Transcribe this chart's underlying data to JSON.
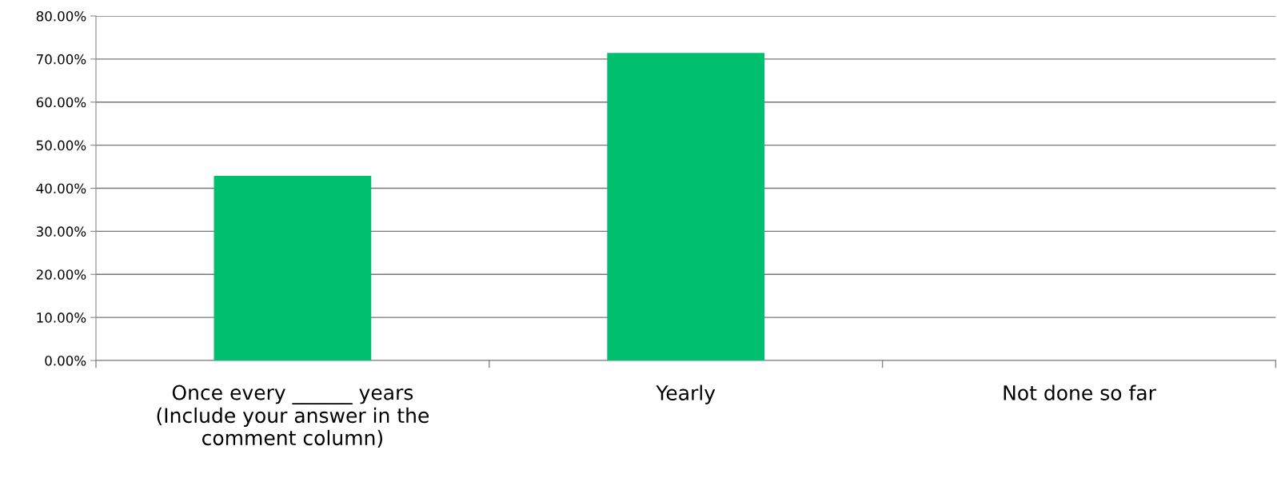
{
  "chart_data": {
    "type": "bar",
    "categories": [
      "Once every ______ years\n(Include your answer in the\ncomment column)",
      "Yearly",
      "Not done so far"
    ],
    "values": [
      42.9,
      71.4,
      0
    ],
    "color": "#00bf6f",
    "ylim": [
      0,
      80
    ],
    "yticks": [
      {
        "value": 0,
        "label": "0.00%"
      },
      {
        "value": 10,
        "label": "10.00%"
      },
      {
        "value": 20,
        "label": "20.00%"
      },
      {
        "value": 30,
        "label": "30.00%"
      },
      {
        "value": 40,
        "label": "40.00%"
      },
      {
        "value": 50,
        "label": "50.00%"
      },
      {
        "value": 60,
        "label": "60.00%"
      },
      {
        "value": 70,
        "label": "70.00%"
      },
      {
        "value": 80,
        "label": "80.00%"
      }
    ],
    "grid": "y",
    "legend": false
  }
}
